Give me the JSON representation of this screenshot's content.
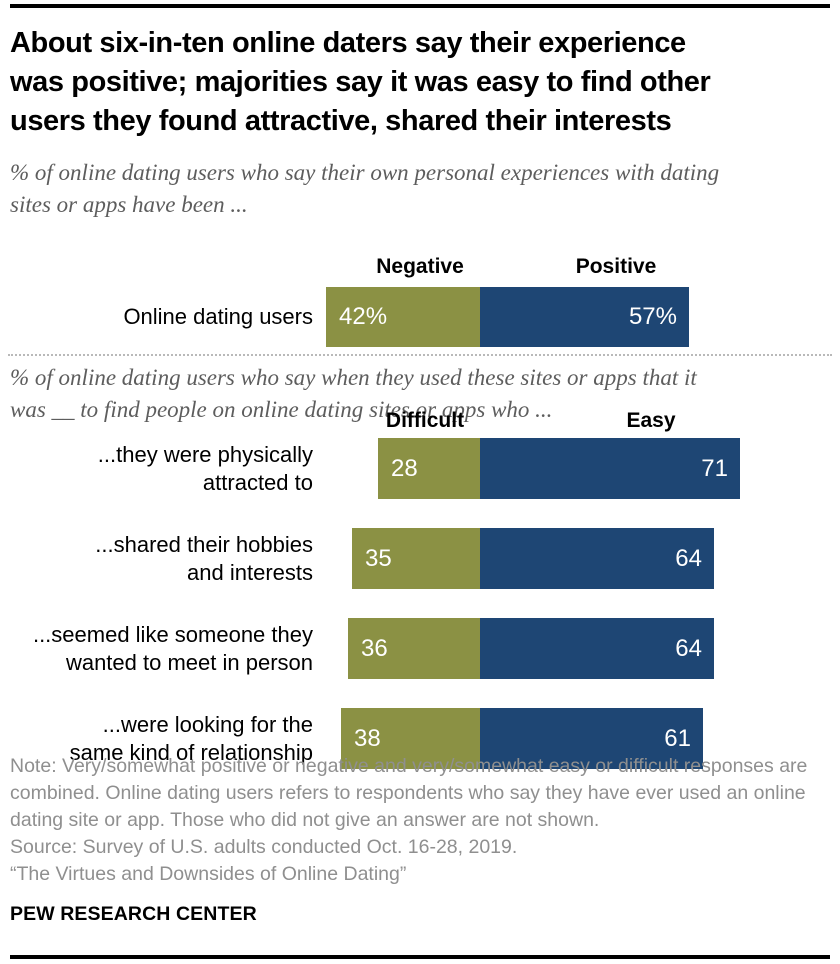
{
  "page": {
    "title_lines": [
      "About six-in-ten online daters say their experience",
      "was positive; majorities say it was easy to find other",
      "users they found attractive, shared their interests"
    ],
    "subtitle1_lines": [
      "% of online dating users who say their own personal experiences with dating",
      "sites or apps have been ..."
    ],
    "subtitle2_lines": [
      "% of online dating users who say when they used these sites or apps that it",
      "was __ to find people on online dating sites or apps who ..."
    ],
    "note": "Note: Very/somewhat positive or negative and very/somewhat easy or difficult responses are combined. Online dating users refers to respondents who say they have ever used an online dating site or app. Those who did not give an answer are not shown.",
    "source": "Source: Survey of U.S. adults conducted Oct. 16-28, 2019.",
    "quote": "“The Virtues and Downsides of Online Dating”",
    "footer": "PEW RESEARCH CENTER"
  },
  "colors": {
    "negative_green": "#8B9144",
    "positive_blue": "#1E4674",
    "note_gray": "#8f8f8f",
    "subtitle_gray": "#5d5d5d"
  },
  "chart_data": [
    {
      "type": "bar",
      "orientation": "horizontal-stacked",
      "title": "% of online dating users who say their own personal experiences with dating sites or apps have been ...",
      "categories": [
        "Online dating users"
      ],
      "series": [
        {
          "name": "Negative",
          "color": "#8B9144",
          "values": [
            42
          ]
        },
        {
          "name": "Positive",
          "color": "#1E4674",
          "values": [
            57
          ]
        }
      ],
      "value_suffix": "%",
      "xlim": [
        0,
        100
      ],
      "legend_position": "above-bars",
      "grid": false
    },
    {
      "type": "bar",
      "orientation": "horizontal-stacked",
      "title": "% of online dating users who say when they used these sites or apps that it was __ to find people on online dating sites or apps who ...",
      "categories": [
        "...they were physically attracted to",
        "...shared their hobbies and interests",
        "...seemed like someone they wanted to meet in person",
        "...were looking for the same kind of relationship"
      ],
      "category_lines": [
        [
          "...they were physically",
          "attracted to"
        ],
        [
          "...shared their hobbies",
          "and interests"
        ],
        [
          "...seemed like someone they",
          "wanted to meet in person"
        ],
        [
          "...were looking for the",
          "same kind of relationship"
        ]
      ],
      "series": [
        {
          "name": "Difficult",
          "color": "#8B9144",
          "values": [
            28,
            35,
            36,
            38
          ]
        },
        {
          "name": "Easy",
          "color": "#1E4674",
          "values": [
            71,
            64,
            64,
            61
          ]
        }
      ],
      "value_suffix": "",
      "xlim": [
        0,
        100
      ],
      "legend_position": "above-bars",
      "grid": false
    }
  ]
}
